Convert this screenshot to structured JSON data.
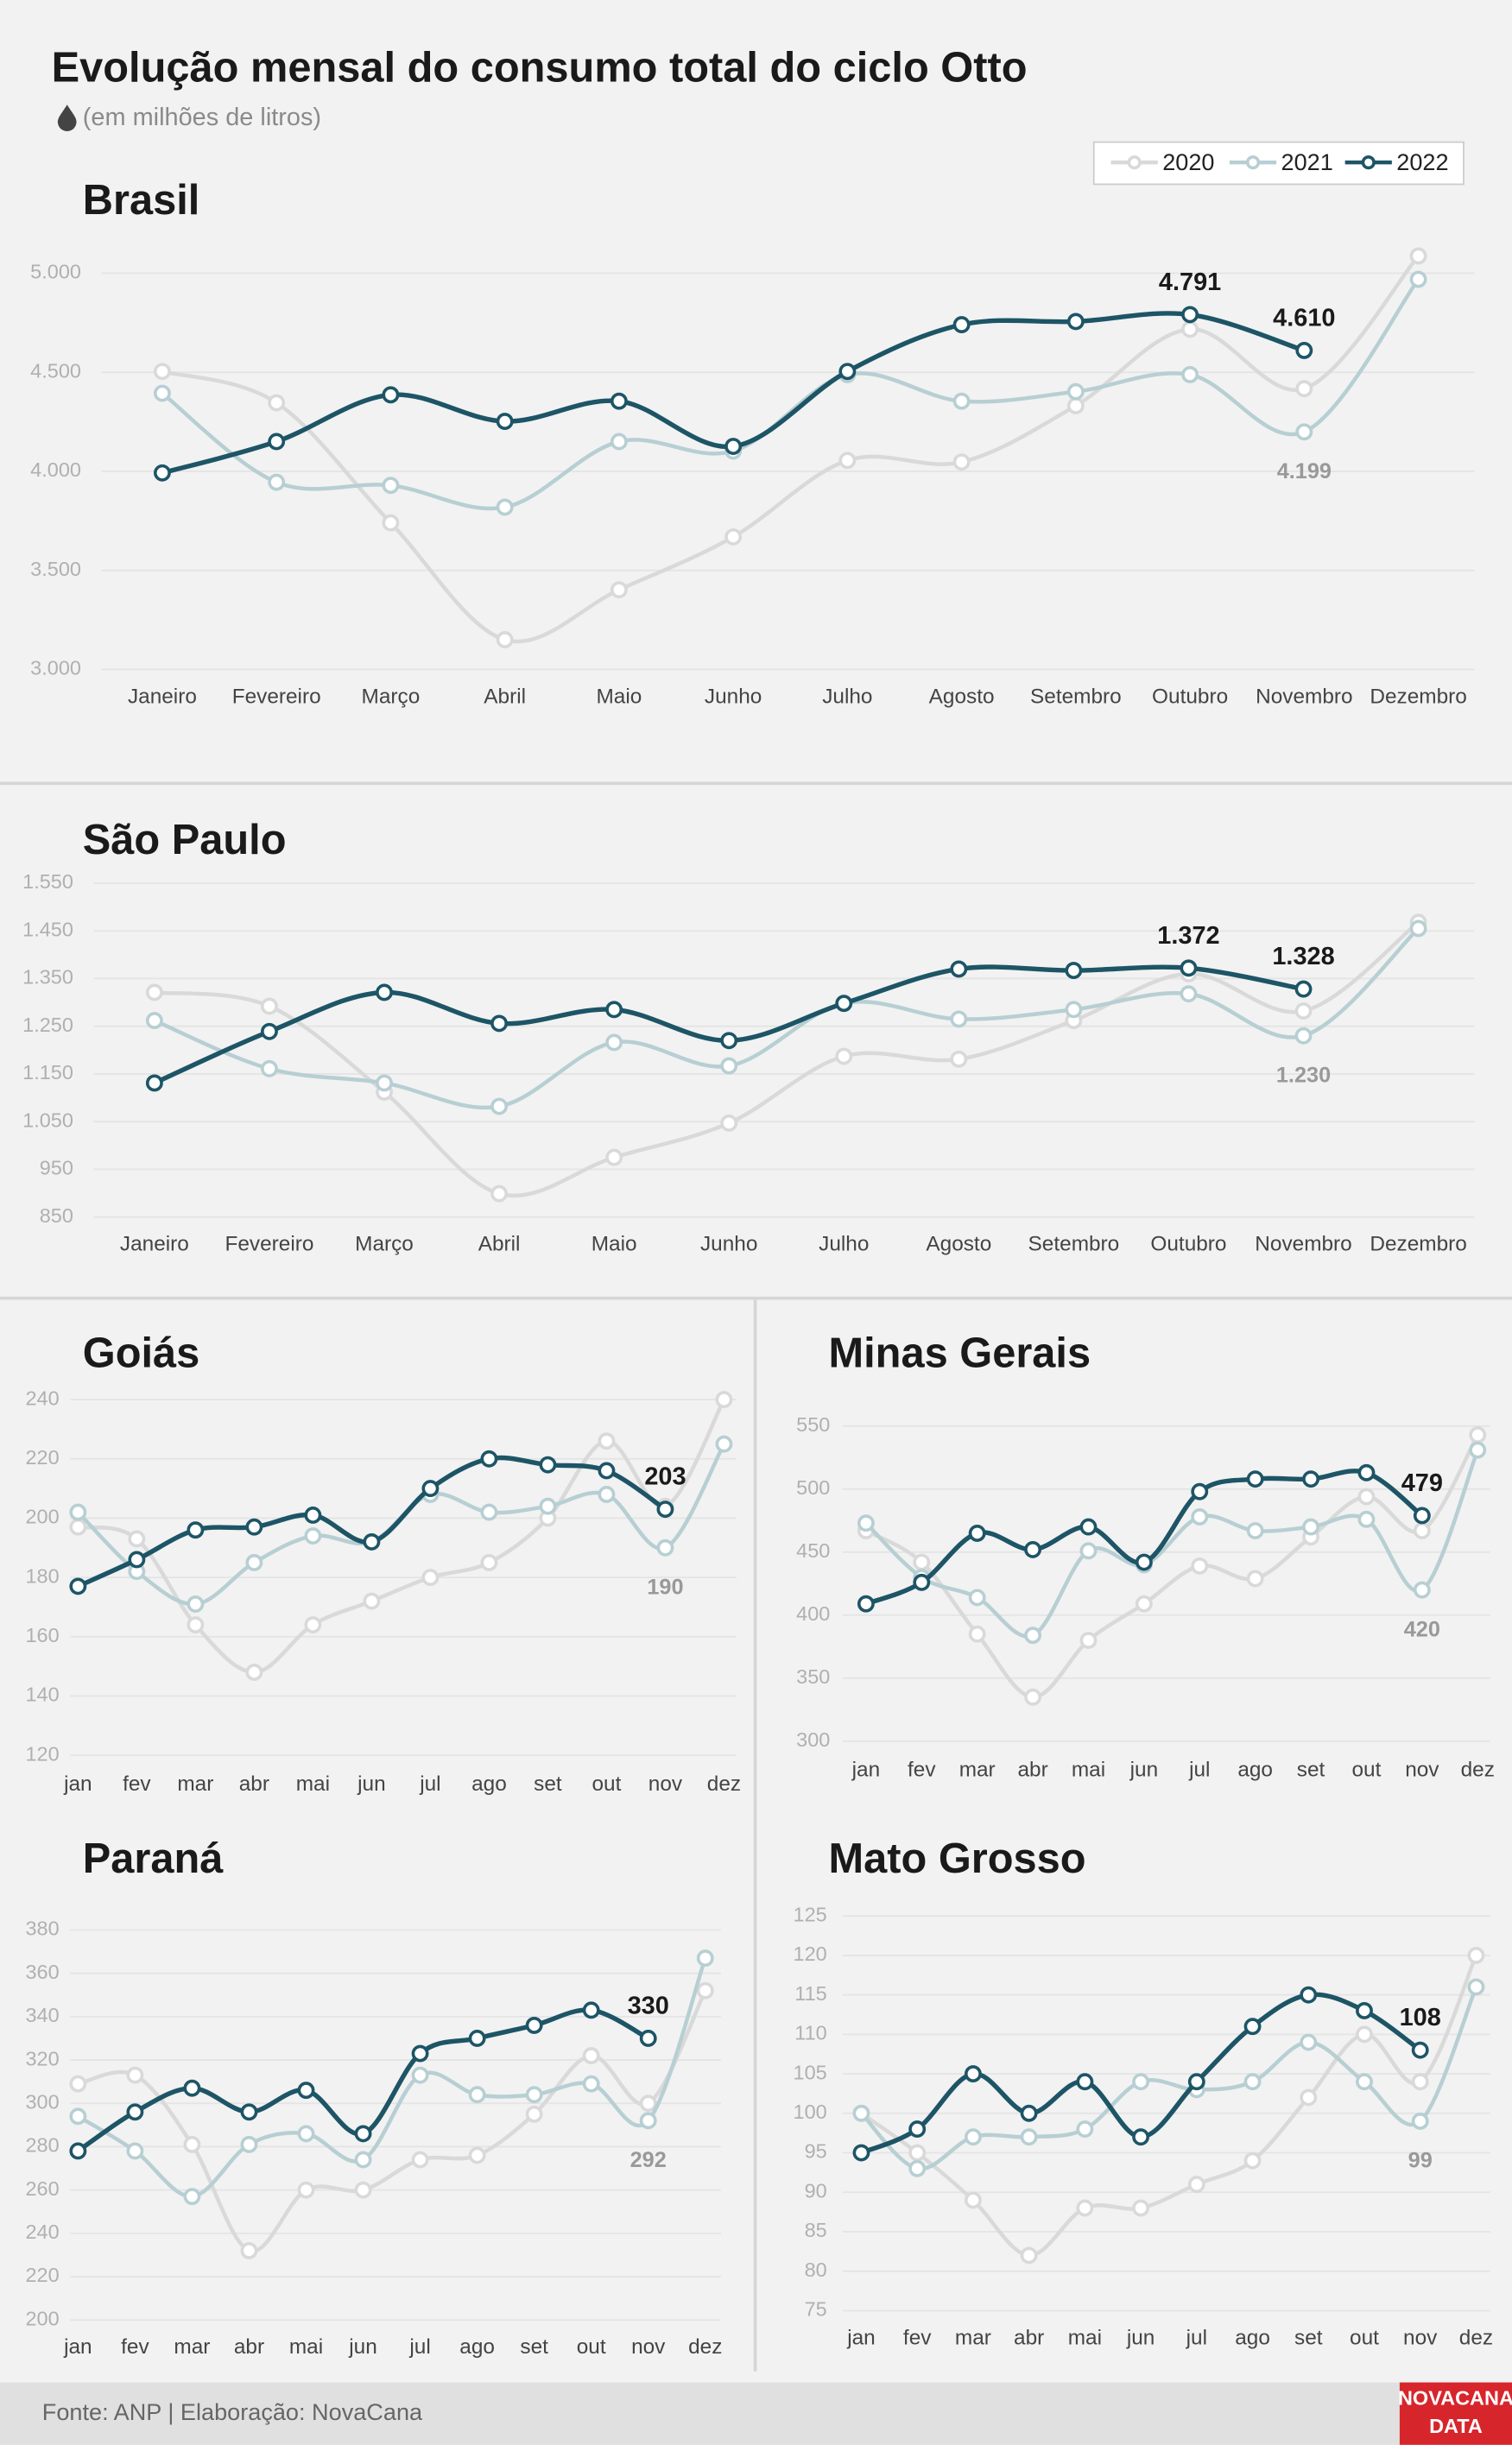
{
  "title": "Evolução mensal do consumo total do ciclo Otto",
  "subtitle": "(em milhões de litros)",
  "source": "Fonte: ANP | Elaboração: NovaCana",
  "brand": [
    "NOVACANA",
    "DATA"
  ],
  "chart_data": [
    {
      "type": "line",
      "title": "Brasil",
      "categories": [
        "Janeiro",
        "Fevereiro",
        "Março",
        "Abril",
        "Maio",
        "Junho",
        "Julho",
        "Agosto",
        "Setembro",
        "Outubro",
        "Novembro",
        "Dezembro"
      ],
      "ylim": [
        3000,
        5000
      ],
      "yticks": [
        {
          "value": 3000,
          "label": "3.000"
        },
        {
          "value": 3500,
          "label": "3.500"
        },
        {
          "value": 4000,
          "label": "4.000"
        },
        {
          "value": 4500,
          "label": "4.500"
        },
        {
          "value": 5000,
          "label": "5.000"
        }
      ],
      "grid": true,
      "series": [
        {
          "name": "2020",
          "color": "#d9d9d9",
          "values": [
            4504,
            4346,
            3740,
            3150,
            3402,
            3669,
            4055,
            4047,
            4331,
            4717,
            4417,
            5087
          ]
        },
        {
          "name": "2021",
          "color": "#b7cfd3",
          "values": [
            4394,
            3945,
            3929,
            3819,
            4150,
            4102,
            4488,
            4354,
            4402,
            4488,
            4199,
            4969
          ],
          "value_labels": [
            null,
            null,
            null,
            null,
            null,
            null,
            null,
            null,
            null,
            null,
            "4.199",
            null
          ]
        },
        {
          "name": "2022",
          "color": "#1d5566",
          "values": [
            3992,
            4150,
            4386,
            4252,
            4354,
            4126,
            4504,
            4740,
            4756,
            4791,
            4610,
            null
          ],
          "value_labels": [
            null,
            null,
            null,
            null,
            null,
            null,
            null,
            null,
            null,
            "4.791",
            "4.610",
            null
          ]
        }
      ]
    },
    {
      "type": "line",
      "title": "São Paulo",
      "categories": [
        "Janeiro",
        "Fevereiro",
        "Março",
        "Abril",
        "Maio",
        "Junho",
        "Julho",
        "Agosto",
        "Setembro",
        "Outubro",
        "Novembro",
        "Dezembro"
      ],
      "ylim": [
        850,
        1550
      ],
      "yticks": [
        850,
        950,
        {
          "value": 1050,
          "label": "1.050"
        },
        {
          "value": 1150,
          "label": "1.150"
        },
        {
          "value": 1250,
          "label": "1.250"
        },
        {
          "value": 1350,
          "label": "1.350"
        },
        {
          "value": 1450,
          "label": "1.450"
        },
        {
          "value": 1550,
          "label": "1.550"
        }
      ],
      "grid": true,
      "series": [
        {
          "color": "#d9d9d9",
          "values": [
            1321,
            1292,
            1112,
            899,
            975,
            1047,
            1187,
            1181,
            1262,
            1360,
            1282,
            1468
          ]
        },
        {
          "color": "#b7cfd3",
          "values": [
            1262,
            1161,
            1131,
            1082,
            1216,
            1167,
            1298,
            1265,
            1285,
            1318,
            1230,
            1455
          ],
          "value_labels": [
            null,
            null,
            null,
            null,
            null,
            null,
            null,
            null,
            null,
            null,
            "1.230",
            null
          ]
        },
        {
          "color": "#1d5566",
          "values": [
            1131,
            1239,
            1321,
            1256,
            1285,
            1220,
            1298,
            1370,
            1367,
            1372,
            1328,
            null
          ],
          "value_labels": [
            null,
            null,
            null,
            null,
            null,
            null,
            null,
            null,
            null,
            "1.372",
            "1.328",
            null
          ]
        }
      ]
    },
    {
      "type": "line",
      "title": "Goiás",
      "categories": [
        "jan",
        "fev",
        "mar",
        "abr",
        "mai",
        "jun",
        "jul",
        "ago",
        "set",
        "out",
        "nov",
        "dez"
      ],
      "ylim": [
        120,
        240
      ],
      "yticks": [
        120,
        140,
        160,
        180,
        200,
        220,
        240
      ],
      "grid": true,
      "series": [
        {
          "color": "#d9d9d9",
          "values": [
            197,
            193,
            164,
            148,
            164,
            172,
            180,
            185,
            200,
            226,
            204,
            240
          ]
        },
        {
          "color": "#b7cfd3",
          "values": [
            202,
            182,
            171,
            185,
            194,
            192,
            208,
            202,
            204,
            208,
            190,
            225
          ],
          "value_labels": [
            null,
            null,
            null,
            null,
            null,
            null,
            null,
            null,
            null,
            null,
            "190",
            null
          ]
        },
        {
          "color": "#1d5566",
          "values": [
            177,
            186,
            196,
            197,
            201,
            192,
            210,
            220,
            218,
            216,
            203,
            null
          ],
          "value_labels": [
            null,
            null,
            null,
            null,
            null,
            null,
            null,
            null,
            null,
            null,
            "203",
            null
          ]
        }
      ]
    },
    {
      "type": "line",
      "title": "Minas Gerais",
      "categories": [
        "jan",
        "fev",
        "mar",
        "abr",
        "mai",
        "jun",
        "jul",
        "ago",
        "set",
        "out",
        "nov",
        "dez"
      ],
      "ylim": [
        300,
        550
      ],
      "yticks": [
        300,
        350,
        400,
        450,
        500,
        550
      ],
      "grid": true,
      "series": [
        {
          "color": "#d9d9d9",
          "values": [
            467,
            442,
            385,
            335,
            380,
            409,
            439,
            429,
            462,
            494,
            467,
            543
          ]
        },
        {
          "color": "#b7cfd3",
          "values": [
            473,
            430,
            414,
            384,
            451,
            440,
            478,
            467,
            470,
            476,
            420,
            531
          ],
          "value_labels": [
            null,
            null,
            null,
            null,
            null,
            null,
            null,
            null,
            null,
            null,
            "420",
            null
          ]
        },
        {
          "color": "#1d5566",
          "values": [
            409,
            426,
            465,
            452,
            470,
            442,
            498,
            508,
            508,
            513,
            479,
            null
          ],
          "value_labels": [
            null,
            null,
            null,
            null,
            null,
            null,
            null,
            null,
            null,
            null,
            "479",
            null
          ]
        }
      ]
    },
    {
      "type": "line",
      "title": "Paraná",
      "categories": [
        "jan",
        "fev",
        "mar",
        "abr",
        "mai",
        "jun",
        "jul",
        "ago",
        "set",
        "out",
        "nov",
        "dez"
      ],
      "ylim": [
        200,
        380
      ],
      "yticks": [
        200,
        220,
        240,
        260,
        280,
        300,
        320,
        340,
        360,
        380
      ],
      "grid": true,
      "series": [
        {
          "color": "#d9d9d9",
          "values": [
            309,
            313,
            281,
            232,
            260,
            260,
            274,
            276,
            295,
            322,
            300,
            352
          ]
        },
        {
          "color": "#b7cfd3",
          "values": [
            294,
            278,
            257,
            281,
            286,
            274,
            313,
            304,
            304,
            309,
            292,
            367
          ],
          "value_labels": [
            null,
            null,
            null,
            null,
            null,
            null,
            null,
            null,
            null,
            null,
            "292",
            null
          ]
        },
        {
          "color": "#1d5566",
          "values": [
            278,
            296,
            307,
            296,
            306,
            286,
            323,
            330,
            336,
            343,
            330,
            null
          ],
          "value_labels": [
            null,
            null,
            null,
            null,
            null,
            null,
            null,
            null,
            null,
            null,
            "330",
            null
          ]
        }
      ]
    },
    {
      "type": "line",
      "title": "Mato Grosso",
      "categories": [
        "jan",
        "fev",
        "mar",
        "abr",
        "mai",
        "jun",
        "jul",
        "ago",
        "set",
        "out",
        "nov",
        "dez"
      ],
      "ylim": [
        75,
        125
      ],
      "yticks": [
        75,
        80,
        85,
        90,
        95,
        100,
        105,
        110,
        115,
        120,
        125
      ],
      "grid": true,
      "series": [
        {
          "color": "#d9d9d9",
          "values": [
            100,
            95,
            89,
            82,
            88,
            88,
            91,
            94,
            102,
            110,
            104,
            120
          ]
        },
        {
          "color": "#b7cfd3",
          "values": [
            100,
            93,
            97,
            97,
            98,
            104,
            103,
            104,
            109,
            104,
            99,
            116
          ],
          "value_labels": [
            null,
            null,
            null,
            null,
            null,
            null,
            null,
            null,
            null,
            null,
            "99",
            null
          ]
        },
        {
          "color": "#1d5566",
          "values": [
            95,
            98,
            105,
            100,
            104,
            97,
            104,
            111,
            115,
            113,
            108,
            null
          ],
          "value_labels": [
            null,
            null,
            null,
            null,
            null,
            null,
            null,
            null,
            null,
            null,
            "108",
            null
          ]
        }
      ]
    }
  ]
}
